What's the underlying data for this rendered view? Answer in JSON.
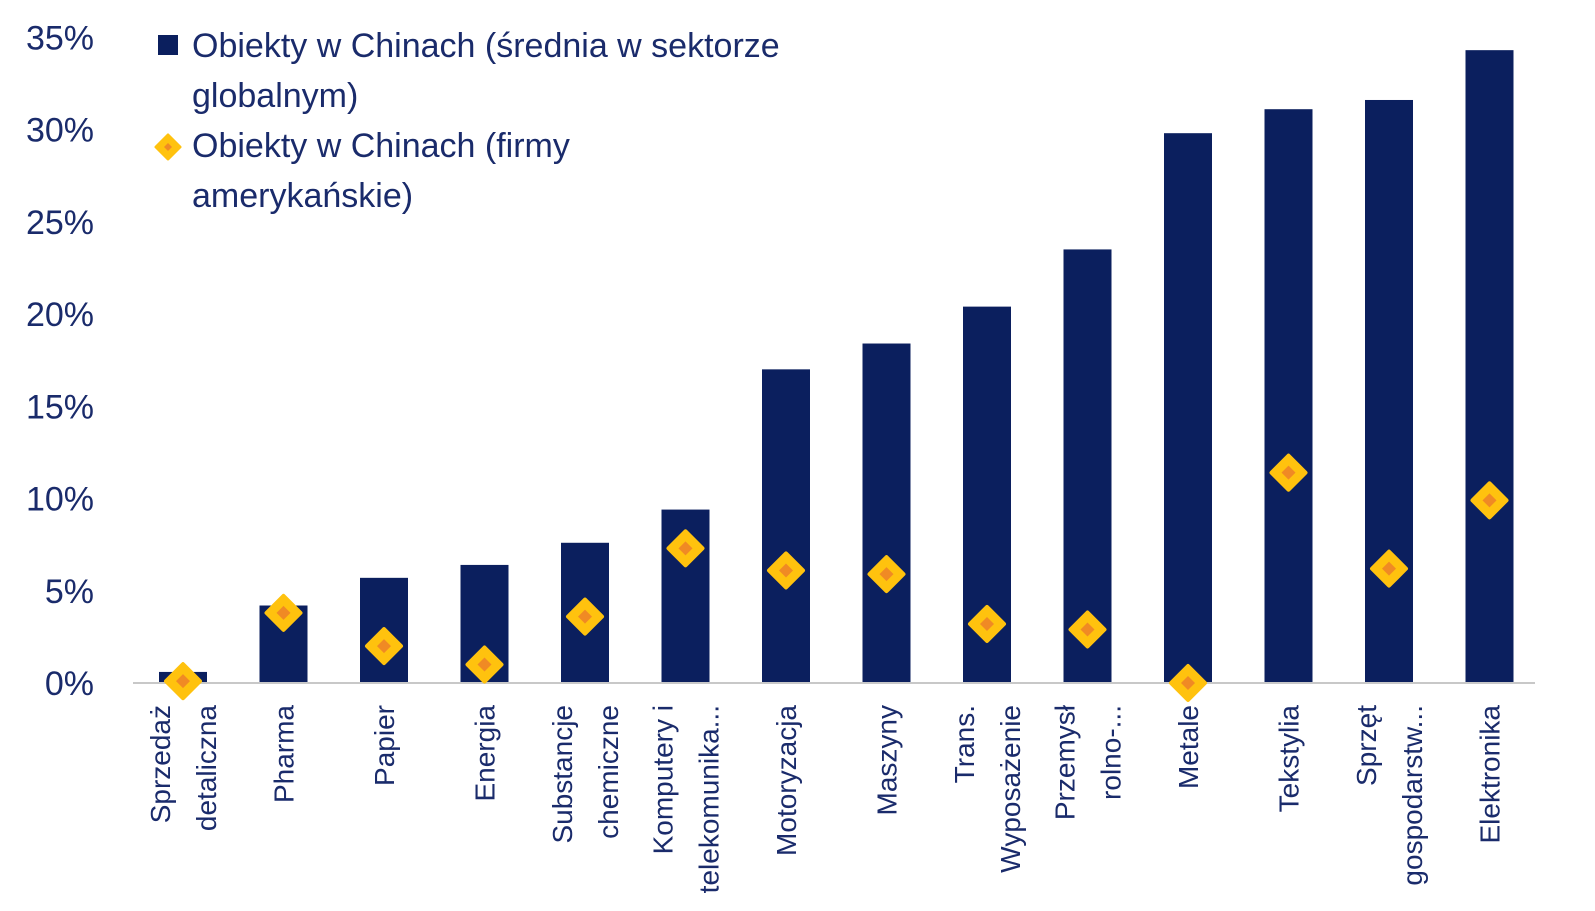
{
  "chart_data": {
    "type": "bar",
    "categories": [
      [
        "Sprzedaż",
        "detaliczna"
      ],
      [
        "Pharma"
      ],
      [
        "Papier"
      ],
      [
        "Energia"
      ],
      [
        "Substancje",
        "chemiczne"
      ],
      [
        "Komputery i",
        "telekomunika..."
      ],
      [
        "Motoryzacja"
      ],
      [
        "Maszyny"
      ],
      [
        "Trans.",
        "Wyposażenie"
      ],
      [
        "Przemysł",
        "rolno-..."
      ],
      [
        "Metale"
      ],
      [
        "Tekstylia"
      ],
      [
        "Sprzęt",
        "gospodarstw..."
      ],
      [
        "Elektronika"
      ]
    ],
    "series": [
      {
        "name": "Obiekty w Chinach (średnia w sektorze globalnym)",
        "kind": "bar",
        "color": "#0b1f5e",
        "values": [
          0.6,
          4.2,
          5.7,
          6.4,
          7.6,
          9.4,
          17.0,
          18.4,
          20.4,
          23.5,
          29.8,
          31.1,
          31.6,
          34.3
        ]
      },
      {
        "name": "Obiekty w Chinach (firmy amerykańskie)",
        "kind": "marker",
        "color": "#ffc20e",
        "inner_color": "#f08a24",
        "values": [
          0.1,
          3.8,
          2.0,
          1.0,
          3.6,
          7.3,
          6.1,
          5.9,
          3.2,
          2.9,
          0.0,
          11.4,
          6.2,
          9.9
        ]
      }
    ],
    "y_ticks": [
      "0%",
      "5%",
      "10%",
      "15%",
      "20%",
      "25%",
      "30%",
      "35%"
    ],
    "ylim": [
      0,
      35
    ],
    "grid": false,
    "legend_position": "top-left",
    "legend_lines": [
      [
        "Obiekty w Chinach (średnia w sektorze",
        "globalnym)"
      ],
      [
        "Obiekty w Chinach (firmy",
        "amerykańskie)"
      ]
    ],
    "axis_color": "#c8c8c8",
    "text_color": "#1a2b6b"
  }
}
